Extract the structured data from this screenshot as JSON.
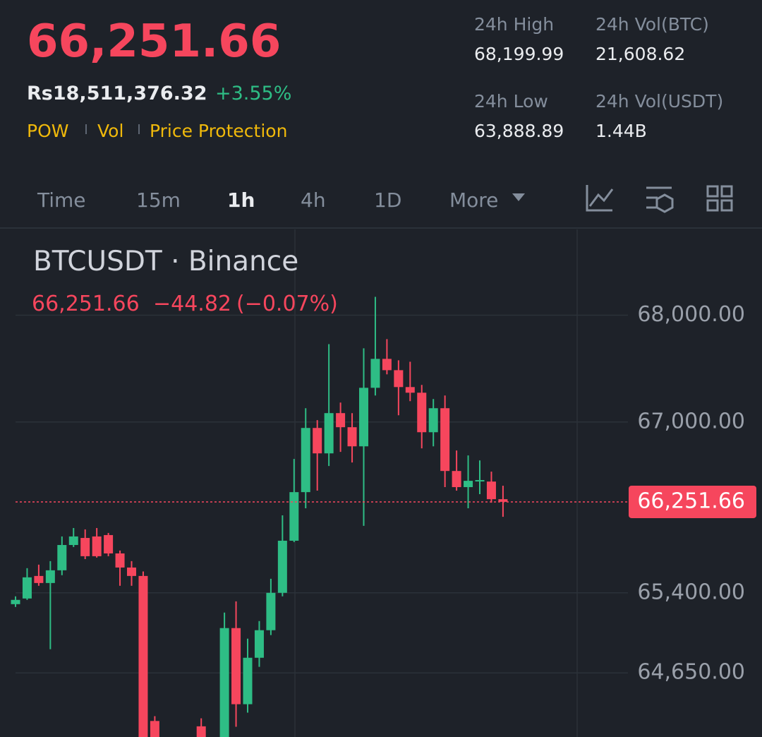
{
  "header": {
    "price": "66,251.66",
    "fiat_price": "Rs18,511,376.32",
    "change": "+3.55%",
    "tags": [
      "POW",
      "Vol",
      "Price Protection"
    ]
  },
  "stats": [
    {
      "label": "24h High",
      "value": "68,199.99"
    },
    {
      "label": "24h Vol(BTC)",
      "value": "21,608.62"
    },
    {
      "label": "24h Low",
      "value": "63,888.89"
    },
    {
      "label": "24h Vol(USDT)",
      "value": "1.44B"
    }
  ],
  "tabs": [
    "Time",
    "15m",
    "1h",
    "4h",
    "1D",
    "More"
  ],
  "active_tab": "1h",
  "chart_data": {
    "type": "candlestick",
    "title": "BTCUSDT · Binance",
    "last": "66,251.66",
    "change": "−44.82",
    "change_pct": "(−0.07%)",
    "price_line": {
      "value": 66251.66,
      "label": "66,251.66"
    },
    "up_color": "#2ebd85",
    "down_color": "#f6465d",
    "grid": true,
    "ylim": [
      64050,
      68770
    ],
    "yticks": [
      {
        "value": 68000,
        "label": "68,000.00"
      },
      {
        "value": 67000,
        "label": "67,000.00"
      },
      {
        "value": 65400,
        "label": "65,400.00"
      },
      {
        "value": 64650,
        "label": "64,650.00"
      }
    ],
    "open": [
      65294,
      65347,
      65558,
      65492,
      65611,
      65848,
      65914,
      65928,
      65941,
      65769,
      65637,
      65558,
      64200,
      null,
      null,
      null,
      64150,
      null,
      64000,
      65070,
      64357,
      64792,
      65050,
      65400,
      65888,
      66343,
      66944,
      66706,
      67083,
      66951,
      66772,
      67320,
      67591,
      67485,
      67327,
      67274,
      66904,
      67129,
      66541,
      66390,
      66449,
      66442,
      66277
    ],
    "high": [
      65367,
      65631,
      65664,
      65697,
      65928,
      66007,
      65994,
      66007,
      65961,
      65796,
      65697,
      65600,
      64245,
      null,
      null,
      null,
      64225,
      null,
      65215,
      65320,
      64971,
      65136,
      65532,
      66126,
      66654,
      67129,
      67017,
      67729,
      67182,
      67083,
      67690,
      68172,
      67776,
      67578,
      67564,
      67347,
      67215,
      67248,
      66733,
      66687,
      66640,
      66535,
      66403
    ],
    "low": [
      65268,
      65334,
      65466,
      64872,
      65565,
      65829,
      65716,
      65730,
      65743,
      65466,
      65466,
      63900,
      63900,
      null,
      null,
      null,
      63900,
      null,
      63950,
      64146,
      64278,
      64707,
      65004,
      65367,
      65875,
      66192,
      66357,
      66588,
      66720,
      66621,
      66027,
      67248,
      67446,
      67063,
      67195,
      66753,
      66772,
      66390,
      66357,
      66192,
      66324,
      66244,
      66112
    ],
    "close": [
      65334,
      65545,
      65492,
      65611,
      65848,
      65928,
      65743,
      65743,
      65769,
      65637,
      65558,
      63950,
      64000,
      null,
      null,
      null,
      64000,
      null,
      65070,
      64357,
      64792,
      65050,
      65400,
      65888,
      66343,
      66944,
      66706,
      67083,
      66951,
      66772,
      67320,
      67591,
      67485,
      67327,
      67274,
      66904,
      67129,
      66541,
      66390,
      66449,
      66456,
      66277,
      66252
    ]
  }
}
